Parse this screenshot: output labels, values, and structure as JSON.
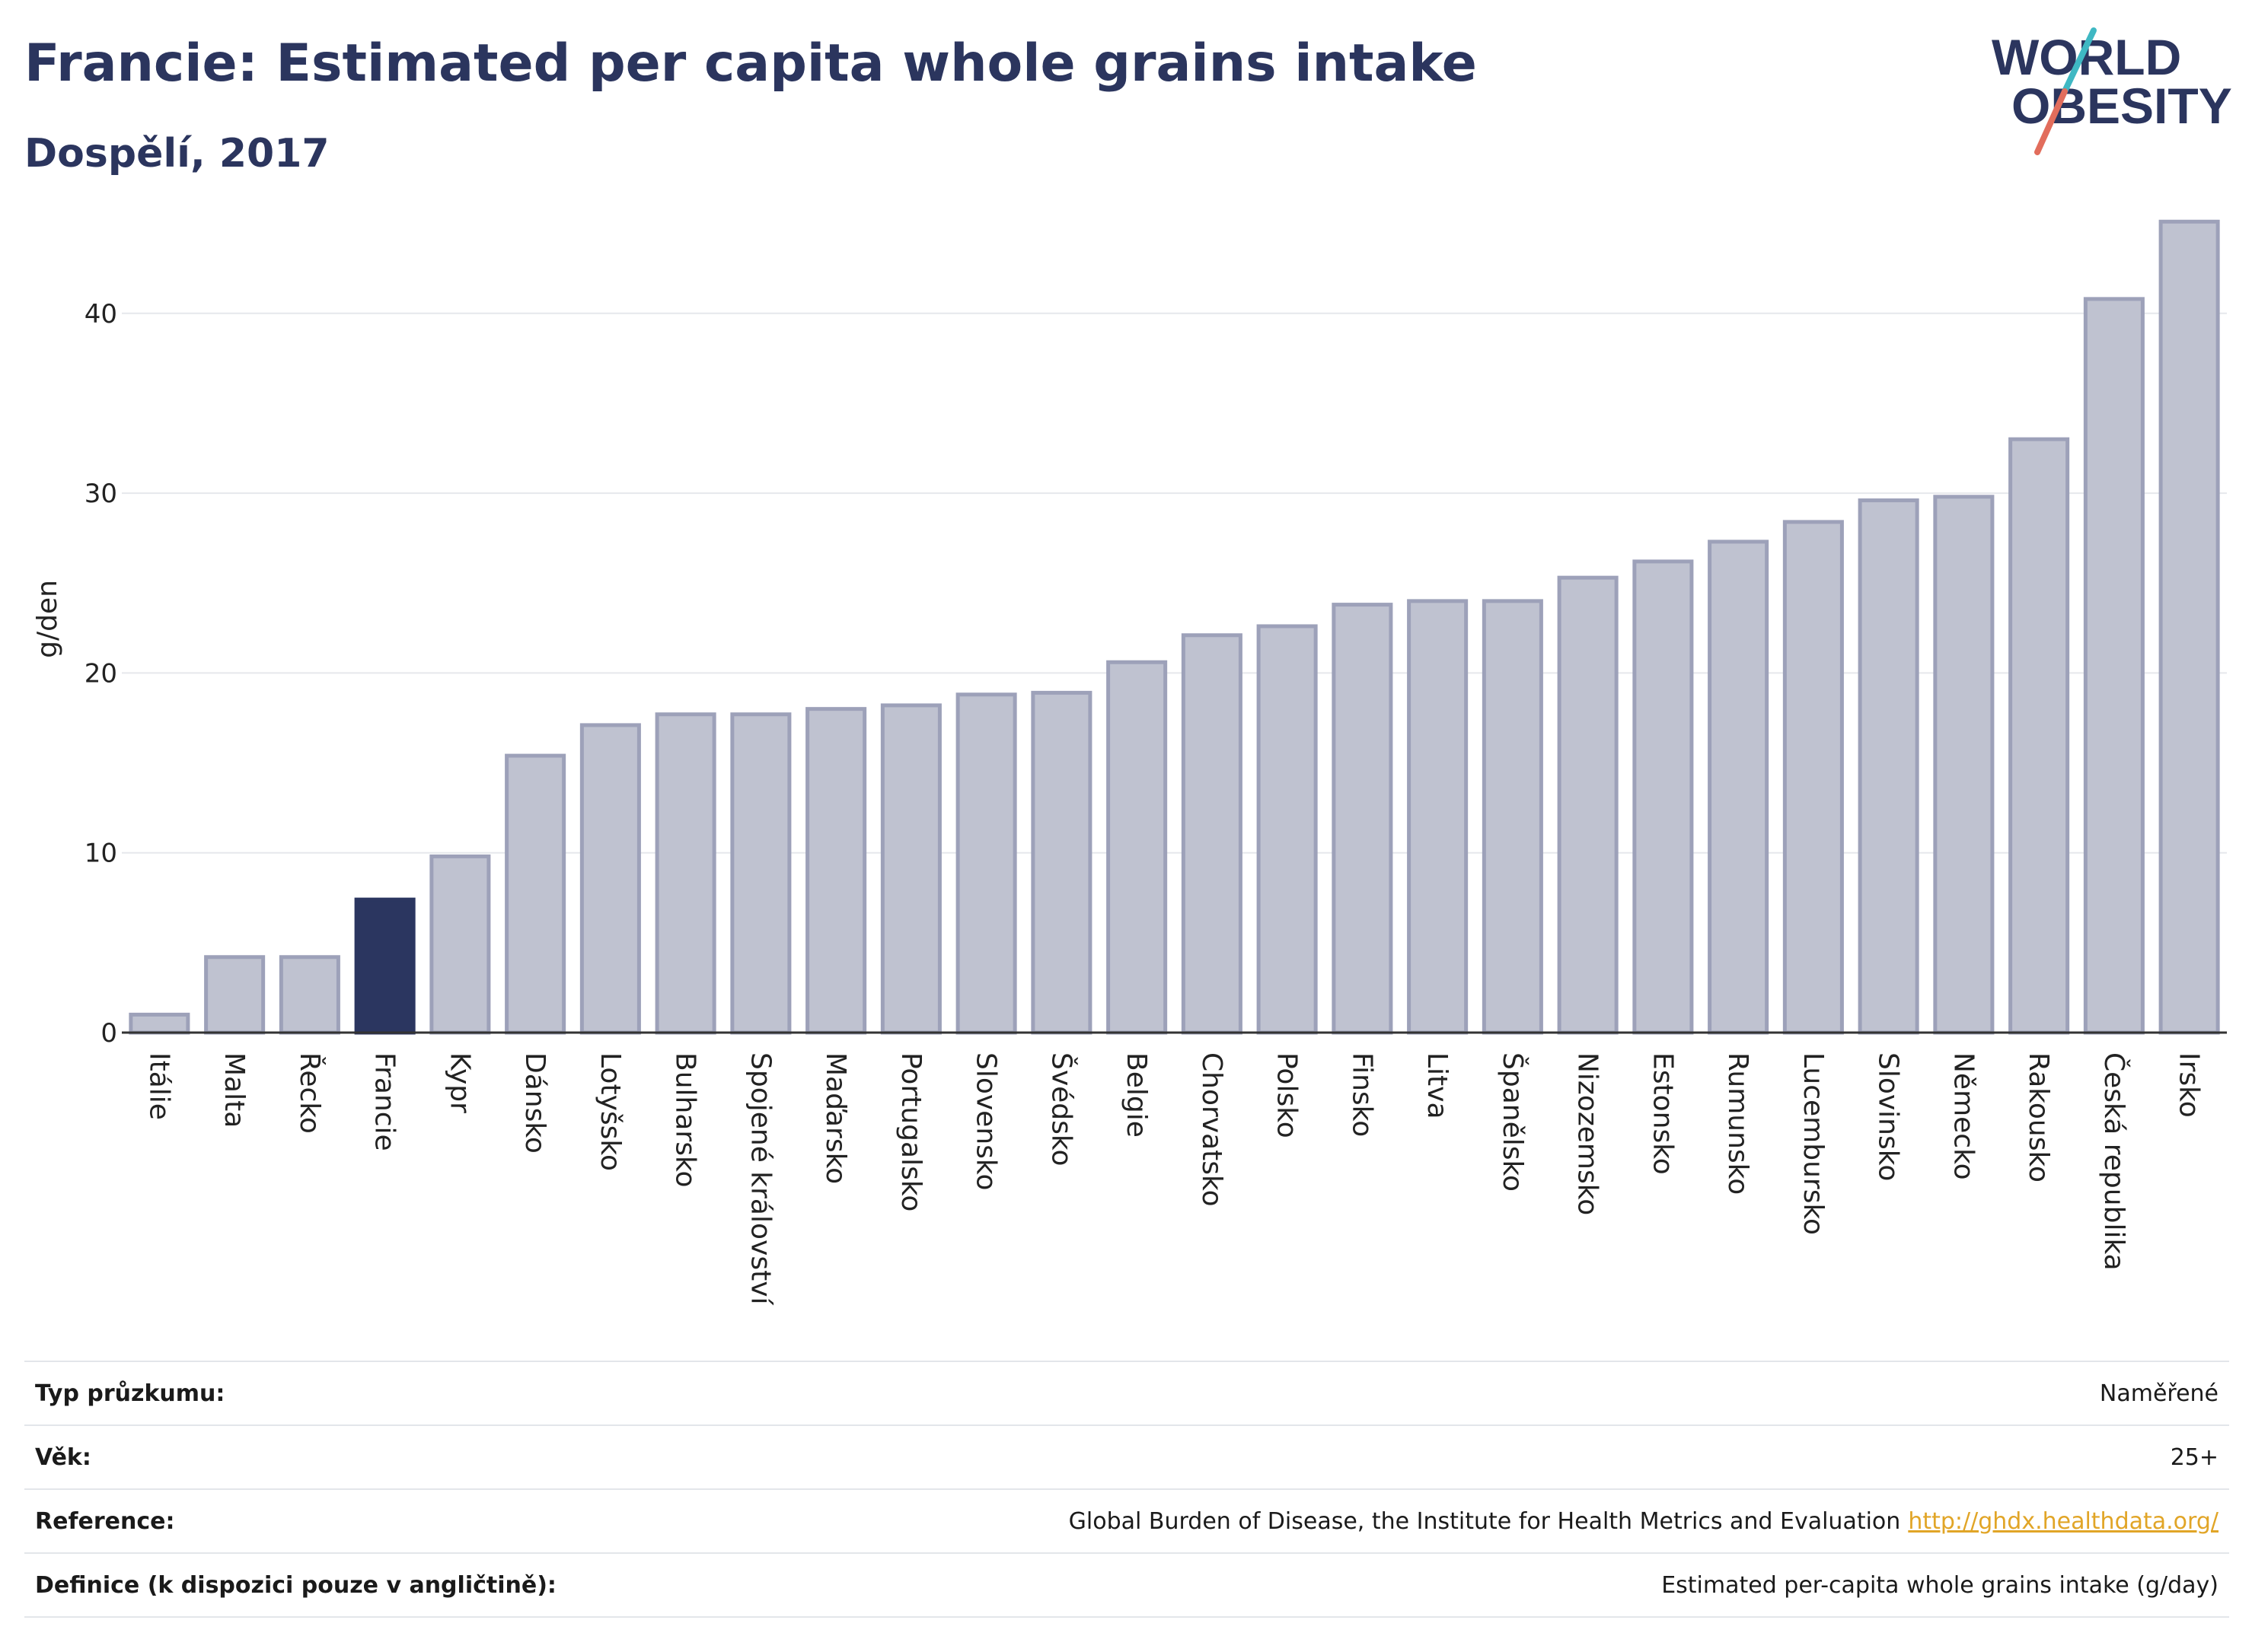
{
  "header": {
    "title": "Francie: Estimated per capita whole grains intake",
    "subtitle": "Dospělí, 2017",
    "logo_line1": "WORLD",
    "logo_line2": "OBESITY"
  },
  "colors": {
    "bar_default": "#bfc2d0",
    "bar_border": "#9da1b9",
    "bar_highlight": "#2b3660",
    "title": "#2b355e",
    "grid": "#e6e8ec",
    "link": "#e1a527",
    "logo_teal": "#3fb8c3",
    "logo_coral": "#e26d5c"
  },
  "chart_data": {
    "type": "bar",
    "ylabel": "g/den",
    "xlabel": "",
    "ylim": [
      0,
      46
    ],
    "yticks": [
      0,
      10,
      20,
      30,
      40
    ],
    "grid": true,
    "highlight": "Francie",
    "categories": [
      "Itálie",
      "Malta",
      "Řecko",
      "Francie",
      "Kypr",
      "Dánsko",
      "Lotyšsko",
      "Bulharsko",
      "Spojené království",
      "Maďarsko",
      "Portugalsko",
      "Slovensko",
      "Švédsko",
      "Belgie",
      "Chorvatsko",
      "Polsko",
      "Finsko",
      "Litva",
      "Španělsko",
      "Nizozemsko",
      "Estonsko",
      "Rumunsko",
      "Lucembursko",
      "Slovinsko",
      "Německo",
      "Rakousko",
      "Česká republika",
      "Irsko"
    ],
    "values": [
      1.0,
      4.2,
      4.2,
      7.4,
      9.8,
      15.4,
      17.1,
      17.7,
      17.7,
      18.0,
      18.2,
      18.8,
      18.9,
      20.6,
      22.1,
      22.6,
      23.8,
      24.0,
      24.0,
      25.3,
      26.2,
      27.3,
      28.4,
      29.6,
      29.8,
      33.0,
      40.8,
      45.1
    ]
  },
  "meta": {
    "rows": [
      {
        "label": "Typ průzkumu:",
        "value": "Naměřené"
      },
      {
        "label": "Věk:",
        "value": "25+"
      },
      {
        "label": "Reference:",
        "value": "Global Burden of Disease, the Institute for Health Metrics and Evaluation",
        "link": "http://ghdx.healthdata.org/"
      },
      {
        "label": "Definice (k dispozici pouze v angličtině):",
        "value": "Estimated per-capita whole grains intake (g/day)"
      }
    ]
  }
}
